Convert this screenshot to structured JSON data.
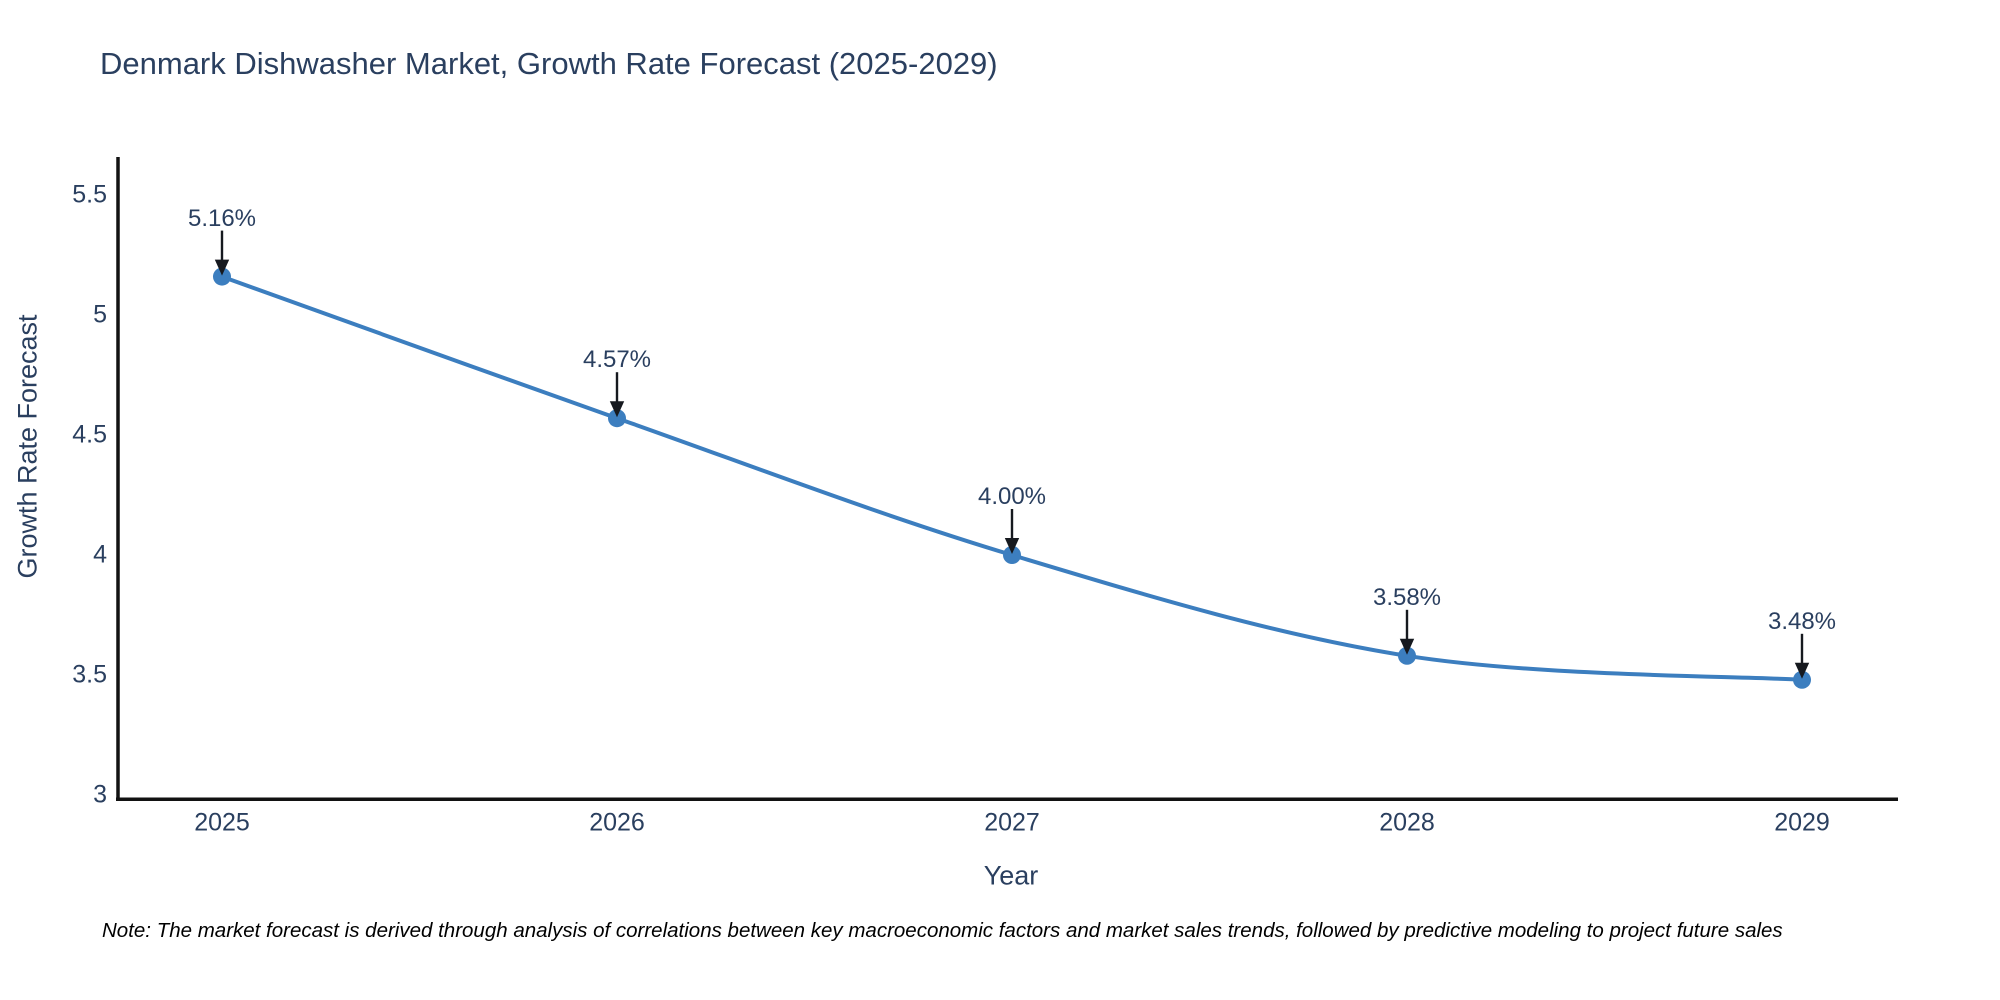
{
  "title": "Denmark Dishwasher Market, Growth Rate Forecast (2025-2029)",
  "note": "Note: The market forecast is derived through analysis of correlations between key macroeconomic factors and market sales trends, followed by predictive modeling to project future sales",
  "chart_data": {
    "type": "line",
    "title": "Denmark Dishwasher Market, Growth Rate Forecast (2025-2029)",
    "xlabel": "Year",
    "ylabel": "Growth Rate Forecast",
    "categories": [
      "2025",
      "2026",
      "2027",
      "2028",
      "2029"
    ],
    "values": [
      5.16,
      4.57,
      4.0,
      3.58,
      3.48
    ],
    "point_labels": [
      "5.16%",
      "4.57%",
      "4.00%",
      "3.58%",
      "3.48%"
    ],
    "ytick_values": [
      5.5,
      5.0,
      4.5,
      4.0,
      3.5,
      3.0
    ],
    "ytick_labels": [
      "5.5",
      "5",
      "4.5",
      "4",
      "3.5",
      "3"
    ],
    "ylim": [
      2.98,
      5.66
    ],
    "grid": false,
    "legend": false,
    "line_shape": "spline",
    "marker": "circle",
    "annotation_arrows": true,
    "colors": {
      "line": "#3c7ebf",
      "marker": "#3c7ebf",
      "axis": "#121212",
      "text": "#2a3f5f",
      "arrow": "#16191f",
      "note": "#000000",
      "background": "#ffffff"
    }
  }
}
